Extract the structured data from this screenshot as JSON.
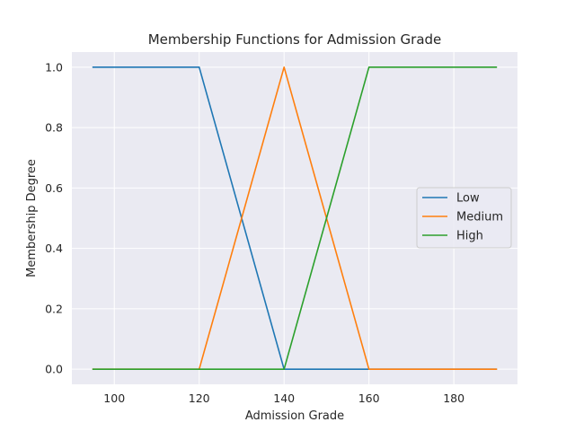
{
  "chart_data": {
    "type": "line",
    "title": "Membership Functions for Admission Grade",
    "xlabel": "Admission Grade",
    "ylabel": "Membership Degree",
    "xlim": [
      90,
      195
    ],
    "ylim": [
      -0.05,
      1.05
    ],
    "x_ticks": [
      100,
      120,
      140,
      160,
      180
    ],
    "y_ticks": [
      0.0,
      0.2,
      0.4,
      0.6,
      0.8,
      1.0
    ],
    "y_tick_labels": [
      "0.0",
      "0.2",
      "0.4",
      "0.6",
      "0.8",
      "1.0"
    ],
    "grid": true,
    "legend_position": "center-right",
    "series": [
      {
        "name": "Low",
        "color": "#1f77b4",
        "x": [
          95,
          120,
          140,
          160,
          190
        ],
        "y": [
          1,
          1,
          0,
          0,
          0
        ]
      },
      {
        "name": "Medium",
        "color": "#ff7f0e",
        "x": [
          95,
          120,
          140,
          160,
          190
        ],
        "y": [
          0,
          0,
          1,
          0,
          0
        ]
      },
      {
        "name": "High",
        "color": "#2ca02c",
        "x": [
          95,
          120,
          140,
          160,
          190
        ],
        "y": [
          0,
          0,
          0,
          1,
          1
        ]
      }
    ]
  }
}
